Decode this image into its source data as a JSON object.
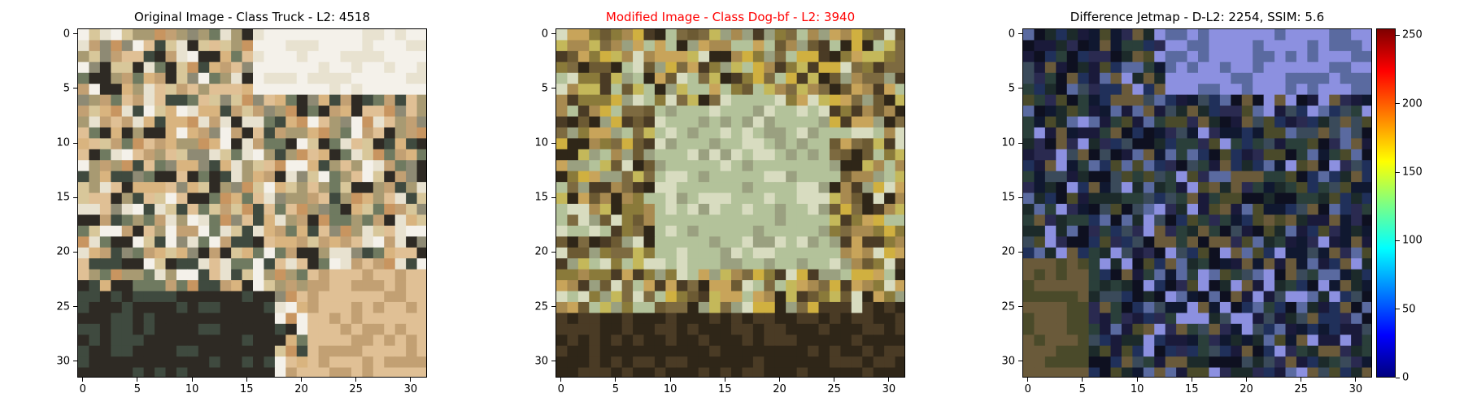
{
  "panels": [
    {
      "title": "Original Image - Class Truck - L2: 4518",
      "title_color": "#000000",
      "x_ticks": [
        "0",
        "5",
        "10",
        "15",
        "20",
        "25",
        "30"
      ],
      "y_ticks": [
        "0",
        "5",
        "10",
        "15",
        "20",
        "25",
        "30"
      ],
      "palette": [
        "#d8c79a",
        "#a89a72",
        "#e8e2d0",
        "#f4f1ea",
        "#6f7a60",
        "#3f4a3f",
        "#c89560",
        "#d9b47f",
        "#2e2a24",
        "#8e8a74",
        "#c2a073",
        "#e0c095"
      ]
    },
    {
      "title": "Modified Image - Class Dog-bf - L2: 3940",
      "title_color": "#ff0000",
      "x_ticks": [
        "0",
        "5",
        "10",
        "15",
        "20",
        "25",
        "30"
      ],
      "y_ticks": [
        "0",
        "5",
        "10",
        "15",
        "20",
        "25",
        "30"
      ],
      "palette": [
        "#c4b85a",
        "#8a7a3a",
        "#b3c29a",
        "#d8dcc0",
        "#6c5a33",
        "#4a3b25",
        "#d0b040",
        "#a88a50",
        "#2f2618",
        "#9aa080",
        "#7d6a40",
        "#c8a45a"
      ]
    },
    {
      "title": "Difference Jetmap - D-L2: 2254, SSIM: 5.6",
      "title_color": "#000000",
      "x_ticks": [
        "0",
        "5",
        "10",
        "15",
        "20",
        "25",
        "30"
      ],
      "y_ticks": [
        "0",
        "5",
        "10",
        "15",
        "20",
        "25",
        "30"
      ],
      "palette": [
        "#1a1a3a",
        "#101830",
        "#2a2a50",
        "#8c90e0",
        "#5a6aa0",
        "#2a3f3a",
        "#4a4a2a",
        "#1c2a2a",
        "#6a5a3a",
        "#3a4a5a",
        "#0e1020",
        "#20305a"
      ]
    }
  ],
  "colorbar": {
    "ticks": [
      "0",
      "50",
      "100",
      "150",
      "200",
      "250"
    ],
    "min": 0,
    "max": 255
  }
}
